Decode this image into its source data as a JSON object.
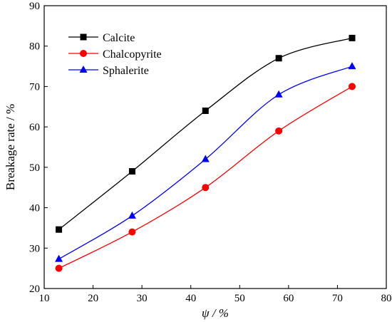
{
  "chart_data": {
    "type": "line",
    "xlabel": "ψ / %",
    "ylabel": "Breakage rate / %",
    "xlim": [
      10,
      80
    ],
    "ylim": [
      20,
      90
    ],
    "xticks": [
      10,
      20,
      30,
      40,
      50,
      60,
      70,
      80
    ],
    "yticks": [
      20,
      30,
      40,
      50,
      60,
      70,
      80,
      90
    ],
    "grid": false,
    "legend_position": "top-left",
    "series": [
      {
        "name": "Calcite",
        "color": "#000000",
        "marker": "square",
        "x": [
          13,
          28,
          43,
          58,
          73
        ],
        "y": [
          34.6,
          49,
          64,
          77,
          82
        ]
      },
      {
        "name": "Chalcopyrite",
        "color": "#ff0000",
        "marker": "circle",
        "x": [
          13,
          28,
          43,
          58,
          73
        ],
        "y": [
          25,
          34,
          45,
          59,
          70
        ]
      },
      {
        "name": "Sphalerite",
        "color": "#0000ff",
        "marker": "triangle",
        "x": [
          13,
          28,
          43,
          58,
          73
        ],
        "y": [
          27.3,
          38,
          52,
          68,
          75
        ]
      }
    ]
  }
}
